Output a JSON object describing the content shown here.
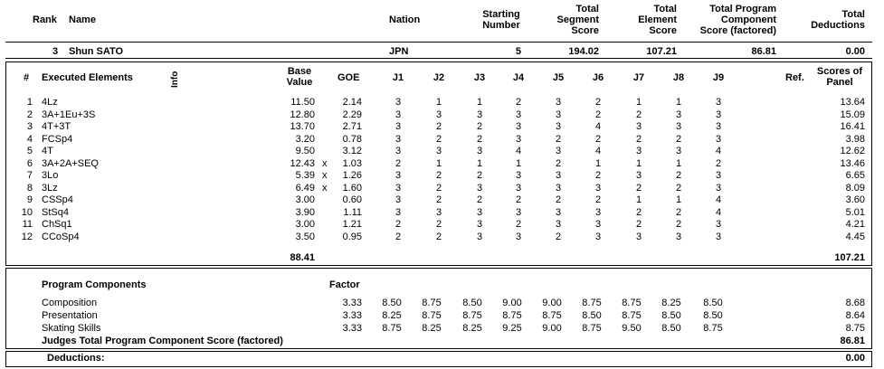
{
  "header": {
    "rank": "Rank",
    "name": "Name",
    "nation": "Nation",
    "starting_number": [
      "Starting",
      "Number"
    ],
    "total_segment_score": [
      "Total",
      "Segment",
      "Score"
    ],
    "total_element_score": [
      "Total",
      "Element",
      "Score"
    ],
    "total_pcs": [
      "Total Program",
      "Component",
      "Score (factored)"
    ],
    "total_deductions": [
      "Total",
      "Deductions"
    ]
  },
  "skater": {
    "rank": "3",
    "name": "Shun SATO",
    "nation": "JPN",
    "starting_number": "5",
    "total_segment_score": "194.02",
    "total_element_score": "107.21",
    "total_pcs": "86.81",
    "total_deductions": "0.00"
  },
  "elements_header": {
    "num": "#",
    "executed": "Executed Elements",
    "info": "Info",
    "base_value": [
      "Base",
      "Value"
    ],
    "goe": "GOE",
    "judges": [
      "J1",
      "J2",
      "J3",
      "J4",
      "J5",
      "J6",
      "J7",
      "J8",
      "J9"
    ],
    "ref": "Ref.",
    "scores_of_panel": [
      "Scores of",
      "Panel"
    ]
  },
  "elements": [
    {
      "num": "1",
      "name": "4Lz",
      "x": "",
      "base": "11.50",
      "goe": "2.14",
      "j": [
        "3",
        "1",
        "1",
        "2",
        "3",
        "2",
        "1",
        "1",
        "3"
      ],
      "panel": "13.64"
    },
    {
      "num": "2",
      "name": "3A+1Eu+3S",
      "x": "",
      "base": "12.80",
      "goe": "2.29",
      "j": [
        "3",
        "3",
        "3",
        "3",
        "3",
        "2",
        "2",
        "3",
        "3"
      ],
      "panel": "15.09"
    },
    {
      "num": "3",
      "name": "4T+3T",
      "x": "",
      "base": "13.70",
      "goe": "2.71",
      "j": [
        "3",
        "2",
        "2",
        "3",
        "3",
        "4",
        "3",
        "3",
        "3"
      ],
      "panel": "16.41"
    },
    {
      "num": "4",
      "name": "FCSp4",
      "x": "",
      "base": "3.20",
      "goe": "0.78",
      "j": [
        "3",
        "2",
        "2",
        "3",
        "2",
        "2",
        "2",
        "2",
        "3"
      ],
      "panel": "3.98"
    },
    {
      "num": "5",
      "name": "4T",
      "x": "",
      "base": "9.50",
      "goe": "3.12",
      "j": [
        "3",
        "3",
        "3",
        "4",
        "3",
        "4",
        "3",
        "3",
        "4"
      ],
      "panel": "12.62"
    },
    {
      "num": "6",
      "name": "3A+2A+SEQ",
      "x": "x",
      "base": "12.43",
      "goe": "1.03",
      "j": [
        "2",
        "1",
        "1",
        "1",
        "2",
        "1",
        "1",
        "1",
        "2"
      ],
      "panel": "13.46"
    },
    {
      "num": "7",
      "name": "3Lo",
      "x": "x",
      "base": "5.39",
      "goe": "1.26",
      "j": [
        "3",
        "2",
        "2",
        "3",
        "3",
        "2",
        "3",
        "2",
        "3"
      ],
      "panel": "6.65"
    },
    {
      "num": "8",
      "name": "3Lz",
      "x": "x",
      "base": "6.49",
      "goe": "1.60",
      "j": [
        "3",
        "2",
        "3",
        "3",
        "3",
        "3",
        "2",
        "2",
        "3"
      ],
      "panel": "8.09"
    },
    {
      "num": "9",
      "name": "CSSp4",
      "x": "",
      "base": "3.00",
      "goe": "0.60",
      "j": [
        "3",
        "2",
        "2",
        "2",
        "2",
        "2",
        "1",
        "1",
        "4"
      ],
      "panel": "3.60"
    },
    {
      "num": "10",
      "name": "StSq4",
      "x": "",
      "base": "3.90",
      "goe": "1.11",
      "j": [
        "3",
        "3",
        "3",
        "3",
        "3",
        "3",
        "2",
        "2",
        "4"
      ],
      "panel": "5.01"
    },
    {
      "num": "11",
      "name": "ChSq1",
      "x": "",
      "base": "3.00",
      "goe": "1.21",
      "j": [
        "2",
        "2",
        "3",
        "2",
        "3",
        "3",
        "2",
        "2",
        "3"
      ],
      "panel": "4.21"
    },
    {
      "num": "12",
      "name": "CCoSp4",
      "x": "",
      "base": "3.50",
      "goe": "0.95",
      "j": [
        "2",
        "2",
        "3",
        "3",
        "2",
        "3",
        "3",
        "3",
        "3"
      ],
      "panel": "4.45"
    }
  ],
  "elements_total": {
    "base": "88.41",
    "panel": "107.21"
  },
  "components_header": {
    "title": "Program Components",
    "factor": "Factor"
  },
  "components": [
    {
      "name": "Composition",
      "factor": "3.33",
      "j": [
        "8.50",
        "8.75",
        "8.50",
        "9.00",
        "9.00",
        "8.75",
        "8.75",
        "8.25",
        "8.50"
      ],
      "panel": "8.68"
    },
    {
      "name": "Presentation",
      "factor": "3.33",
      "j": [
        "8.25",
        "8.75",
        "8.75",
        "8.75",
        "8.75",
        "8.50",
        "8.75",
        "8.50",
        "8.50"
      ],
      "panel": "8.64"
    },
    {
      "name": "Skating Skills",
      "factor": "3.33",
      "j": [
        "8.75",
        "8.25",
        "8.25",
        "9.25",
        "9.00",
        "8.75",
        "9.50",
        "8.50",
        "8.75"
      ],
      "panel": "8.75"
    }
  ],
  "components_total": {
    "label": "Judges Total Program Component Score (factored)",
    "value": "86.81"
  },
  "deductions": {
    "label": "Deductions:",
    "value": "0.00"
  }
}
